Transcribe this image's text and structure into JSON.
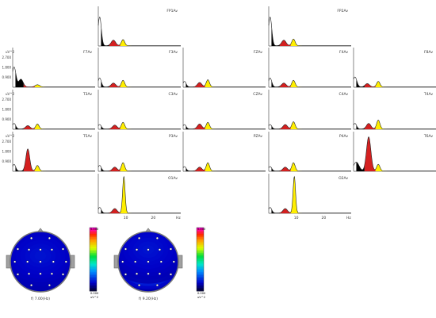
{
  "yunit": "uV^2",
  "xunit": "Hz",
  "ytick_values": [
    "2.700",
    "1.800",
    "0.900"
  ],
  "xtick_values": [
    "10",
    "20"
  ],
  "fill_colors": {
    "delta": "#000000",
    "theta": "#d42020",
    "alpha": "#ffee00"
  },
  "chart_data": {
    "type": "area",
    "x_range_hz": [
      0,
      30
    ],
    "y_range": [
      0,
      3.6
    ],
    "bands": [
      {
        "name": "delta",
        "range_hz": [
          1,
          4
        ],
        "color": "#000000"
      },
      {
        "name": "theta",
        "range_hz": [
          4,
          8
        ],
        "color": "#d42020"
      },
      {
        "name": "alpha",
        "range_hz": [
          8,
          12
        ],
        "color": "#ffee00"
      }
    ],
    "channels": [
      {
        "label": "FP1Av",
        "row": 0,
        "col": 1,
        "peaks": [
          [
            0.5,
            2.6,
            0.6
          ],
          [
            5.5,
            0.5,
            0.8
          ],
          [
            9,
            0.55,
            0.6
          ]
        ]
      },
      {
        "label": "FP2Av",
        "row": 0,
        "col": 3,
        "peaks": [
          [
            0.5,
            2.6,
            0.6
          ],
          [
            5.5,
            0.5,
            0.8
          ],
          [
            9,
            0.6,
            0.6
          ]
        ]
      },
      {
        "label": "F7Av",
        "row": 1,
        "col": 0,
        "peaks": [
          [
            0.5,
            1.8,
            0.7
          ],
          [
            3,
            0.7,
            0.8
          ],
          [
            9,
            0.2,
            0.8
          ]
        ]
      },
      {
        "label": "F3Av",
        "row": 1,
        "col": 1,
        "peaks": [
          [
            0.5,
            0.8,
            0.6
          ],
          [
            5.5,
            0.35,
            0.8
          ],
          [
            9,
            0.6,
            0.6
          ]
        ]
      },
      {
        "label": "FZAv",
        "row": 1,
        "col": 2,
        "peaks": [
          [
            0.5,
            0.5,
            0.6
          ],
          [
            6,
            0.4,
            0.8
          ],
          [
            9,
            0.65,
            0.6
          ]
        ]
      },
      {
        "label": "F4Av",
        "row": 1,
        "col": 3,
        "peaks": [
          [
            0.5,
            0.8,
            0.6
          ],
          [
            5.5,
            0.35,
            0.8
          ],
          [
            9,
            0.6,
            0.6
          ]
        ]
      },
      {
        "label": "F8Av",
        "row": 1,
        "col": 4,
        "peaks": [
          [
            0.5,
            0.9,
            0.7
          ],
          [
            5,
            0.3,
            0.8
          ],
          [
            9,
            0.5,
            0.6
          ]
        ]
      },
      {
        "label": "T3Av",
        "row": 2,
        "col": 0,
        "peaks": [
          [
            0.5,
            0.5,
            0.6
          ],
          [
            5.5,
            0.3,
            0.8
          ],
          [
            9,
            0.45,
            0.6
          ]
        ]
      },
      {
        "label": "C3Av",
        "row": 2,
        "col": 1,
        "peaks": [
          [
            0.5,
            0.4,
            0.6
          ],
          [
            6,
            0.35,
            0.8
          ],
          [
            9,
            0.6,
            0.6
          ]
        ]
      },
      {
        "label": "CZAv",
        "row": 2,
        "col": 2,
        "peaks": [
          [
            0.5,
            0.4,
            0.6
          ],
          [
            6,
            0.45,
            0.8
          ],
          [
            9,
            0.6,
            0.6
          ]
        ]
      },
      {
        "label": "C4Av",
        "row": 2,
        "col": 3,
        "peaks": [
          [
            0.5,
            0.4,
            0.6
          ],
          [
            6,
            0.4,
            0.8
          ],
          [
            9,
            0.65,
            0.6
          ]
        ]
      },
      {
        "label": "T4Av",
        "row": 2,
        "col": 4,
        "peaks": [
          [
            0.5,
            0.5,
            0.6
          ],
          [
            5.5,
            0.5,
            0.8
          ],
          [
            9,
            0.8,
            0.6
          ]
        ]
      },
      {
        "label": "T5Av",
        "row": 3,
        "col": 0,
        "peaks": [
          [
            0.5,
            0.6,
            0.6
          ],
          [
            5.5,
            2.0,
            0.7
          ],
          [
            9,
            0.5,
            0.6
          ]
        ]
      },
      {
        "label": "P3Av",
        "row": 3,
        "col": 1,
        "peaks": [
          [
            0.5,
            0.5,
            0.6
          ],
          [
            6,
            0.35,
            0.8
          ],
          [
            9,
            0.75,
            0.6
          ]
        ]
      },
      {
        "label": "PZAv",
        "row": 3,
        "col": 2,
        "peaks": [
          [
            0.5,
            0.4,
            0.6
          ],
          [
            6,
            0.35,
            0.8
          ],
          [
            9,
            0.75,
            0.6
          ]
        ]
      },
      {
        "label": "P4Av",
        "row": 3,
        "col": 3,
        "peaks": [
          [
            0.5,
            0.4,
            0.6
          ],
          [
            6,
            0.35,
            0.8
          ],
          [
            9,
            0.75,
            0.6
          ]
        ]
      },
      {
        "label": "T6Av",
        "row": 3,
        "col": 4,
        "peaks": [
          [
            1,
            0.8,
            1.0
          ],
          [
            5.5,
            3.1,
            0.8
          ],
          [
            9,
            0.6,
            0.6
          ]
        ]
      },
      {
        "label": "O1Av",
        "row": 4,
        "col": 1,
        "peaks": [
          [
            0.5,
            0.5,
            0.6
          ],
          [
            6,
            0.4,
            0.8
          ],
          [
            9.3,
            3.3,
            0.45
          ]
        ]
      },
      {
        "label": "O2Av",
        "row": 4,
        "col": 3,
        "peaks": [
          [
            0.5,
            0.5,
            0.6
          ],
          [
            6,
            0.4,
            0.8
          ],
          [
            9.3,
            3.3,
            0.45
          ]
        ]
      }
    ]
  },
  "topomaps": [
    {
      "label": "f) 7.00(Hz)",
      "spots": [
        [
          -0.78,
          0.45,
          1.0,
          0.18
        ],
        [
          0.8,
          0.42,
          1.0,
          0.18
        ],
        [
          -0.25,
          0.3,
          0.45,
          0.25
        ],
        [
          0.3,
          0.35,
          0.4,
          0.25
        ],
        [
          0.0,
          -0.2,
          0.15,
          0.5
        ]
      ]
    },
    {
      "label": "f) 9.20(Hz)",
      "spots": [
        [
          -0.2,
          0.55,
          1.0,
          0.17
        ],
        [
          0.25,
          0.55,
          1.0,
          0.17
        ],
        [
          -0.65,
          0.4,
          0.5,
          0.2
        ],
        [
          0.65,
          0.4,
          0.5,
          0.2
        ],
        [
          0.0,
          0.1,
          0.35,
          0.4
        ],
        [
          0.0,
          -0.4,
          0.15,
          0.5
        ]
      ]
    }
  ],
  "colorbar": {
    "max_label": "5.000",
    "min_label": "0.000",
    "unit": "uV^2"
  }
}
